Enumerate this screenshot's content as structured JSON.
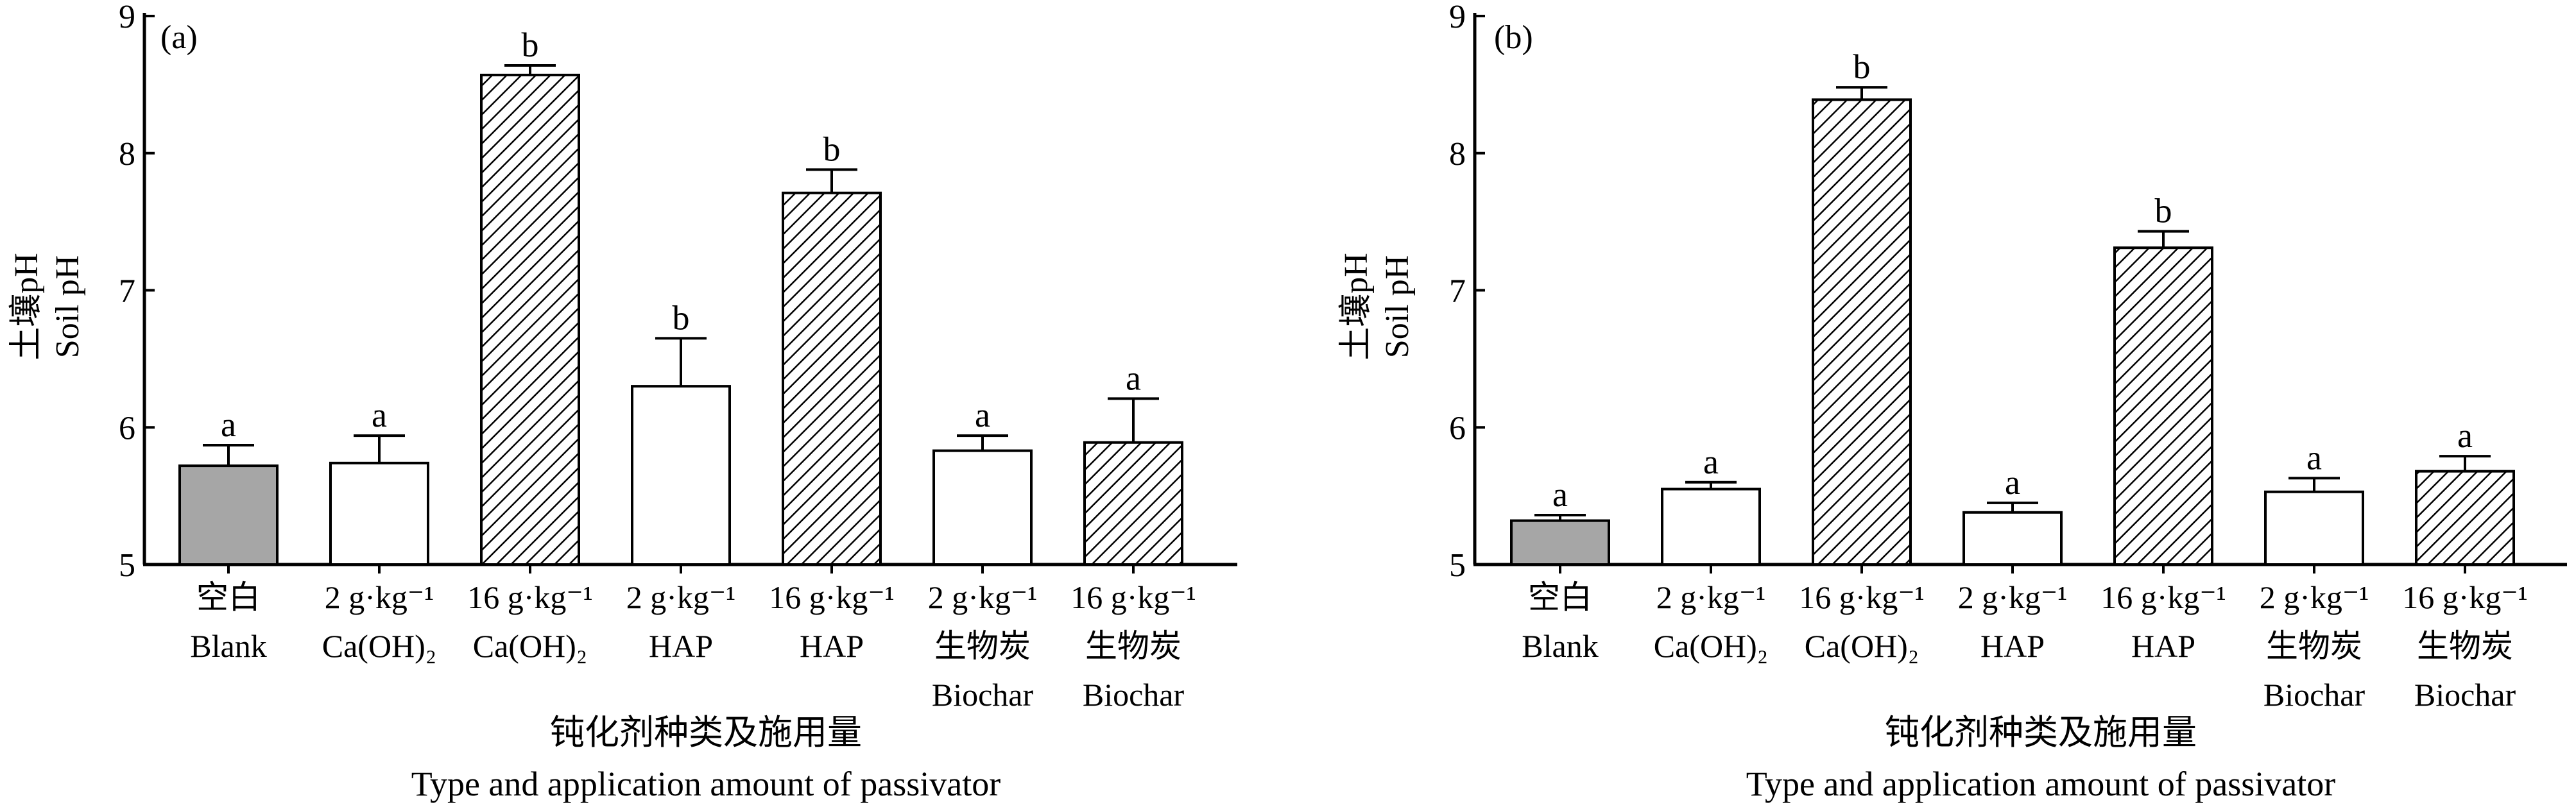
{
  "chart_data": [
    {
      "type": "bar",
      "panel_label": "(a)",
      "ylabel": [
        "土壤pH",
        "Soil pH"
      ],
      "xlabel": [
        "钝化剂种类及施用量",
        "Type and application amount of passivator"
      ],
      "ylim": [
        5,
        9
      ],
      "yticks": [
        5,
        6,
        7,
        8,
        9
      ],
      "categories": [
        [
          "空白",
          "Blank"
        ],
        [
          "2 g·kg⁻¹",
          "Ca(OH)₂"
        ],
        [
          "16 g·kg⁻¹",
          "Ca(OH)₂"
        ],
        [
          "2 g·kg⁻¹",
          "HAP"
        ],
        [
          "16 g·kg⁻¹",
          "HAP"
        ],
        [
          "2 g·kg⁻¹",
          "生物炭",
          "Biochar"
        ],
        [
          "16 g·kg⁻¹",
          "生物炭",
          "Biochar"
        ]
      ],
      "values": [
        5.72,
        5.74,
        8.57,
        6.3,
        7.71,
        5.83,
        5.89
      ],
      "errors": [
        0.15,
        0.2,
        0.07,
        0.35,
        0.17,
        0.11,
        0.32
      ],
      "significance": [
        "a",
        "a",
        "b",
        "b",
        "b",
        "a",
        "a"
      ],
      "fills": [
        "gray",
        "white",
        "hatch",
        "white",
        "hatch",
        "white",
        "hatch"
      ]
    },
    {
      "type": "bar",
      "panel_label": "(b)",
      "ylabel": [
        "土壤pH",
        "Soil pH"
      ],
      "xlabel": [
        "钝化剂种类及施用量",
        "Type and application amount of passivator"
      ],
      "ylim": [
        5,
        9
      ],
      "yticks": [
        5,
        6,
        7,
        8,
        9
      ],
      "categories": [
        [
          "空白",
          "Blank"
        ],
        [
          "2 g·kg⁻¹",
          "Ca(OH)₂"
        ],
        [
          "16 g·kg⁻¹",
          "Ca(OH)₂"
        ],
        [
          "2 g·kg⁻¹",
          "HAP"
        ],
        [
          "16 g·kg⁻¹",
          "HAP"
        ],
        [
          "2 g·kg⁻¹",
          "生物炭",
          "Biochar"
        ],
        [
          "16 g·kg⁻¹",
          "生物炭",
          "Biochar"
        ]
      ],
      "values": [
        5.32,
        5.55,
        8.39,
        5.38,
        7.31,
        5.53,
        5.68
      ],
      "errors": [
        0.04,
        0.05,
        0.09,
        0.07,
        0.12,
        0.1,
        0.11
      ],
      "significance": [
        "a",
        "a",
        "b",
        "a",
        "b",
        "a",
        "a"
      ],
      "fills": [
        "gray",
        "white",
        "hatch",
        "white",
        "hatch",
        "white",
        "hatch"
      ]
    }
  ],
  "colors": {
    "gray_fill": "#a6a6a6",
    "bar_stroke": "#000000",
    "hatch": "#000000"
  }
}
